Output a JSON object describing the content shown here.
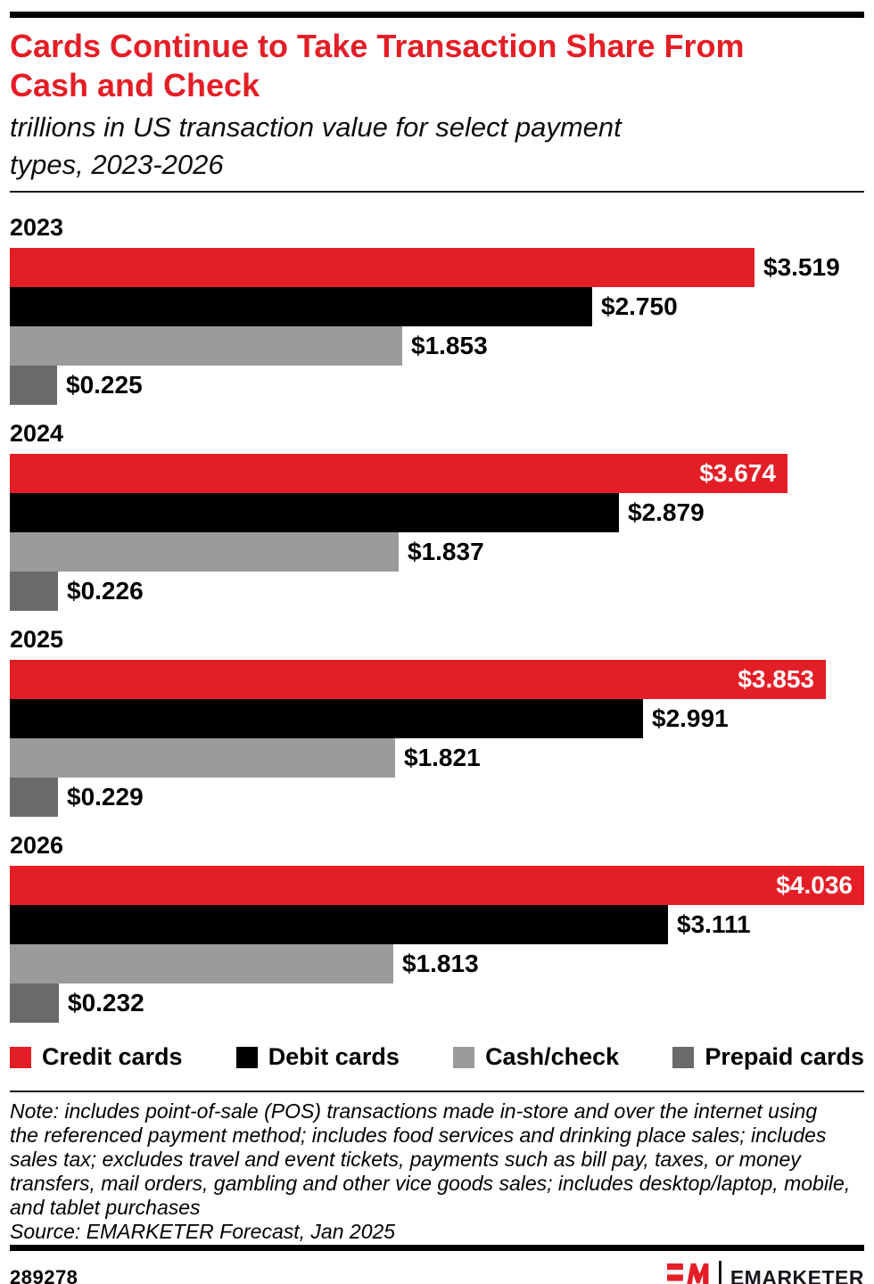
{
  "header": {
    "title_lines": [
      "Cards Continue to Take Transaction Share From",
      "Cash and Check"
    ],
    "subtitle_lines": [
      "trillions in US transaction value for select payment",
      "types, 2023-2026"
    ]
  },
  "chart_data": {
    "type": "bar",
    "orientation": "horizontal",
    "title": "Cards Continue to Take Transaction Share From Cash and Check",
    "subtitle": "trillions in US transaction value for select payment types, 2023-2026",
    "unit": "trillions of US dollars",
    "groups": [
      "2023",
      "2024",
      "2025",
      "2026"
    ],
    "series": [
      {
        "name": "Credit cards",
        "color": "#e41e26",
        "values": [
          3.519,
          3.674,
          3.853,
          4.036
        ],
        "labels": [
          "$3.519",
          "$3.674",
          "$3.853",
          "$4.036"
        ]
      },
      {
        "name": "Debit cards",
        "color": "#000000",
        "values": [
          2.75,
          2.879,
          2.991,
          3.111
        ],
        "labels": [
          "$2.750",
          "$2.879",
          "$2.991",
          "$3.111"
        ]
      },
      {
        "name": "Cash/check",
        "color": "#9b9b9b",
        "values": [
          1.853,
          1.837,
          1.821,
          1.813
        ],
        "labels": [
          "$1.853",
          "$1.837",
          "$1.821",
          "$1.813"
        ]
      },
      {
        "name": "Prepaid cards",
        "color": "#6a6a6a",
        "values": [
          0.225,
          0.226,
          0.229,
          0.232
        ],
        "labels": [
          "$0.225",
          "$0.226",
          "$0.229",
          "$0.232"
        ]
      }
    ],
    "xlim": [
      0,
      4.036
    ],
    "grid": false,
    "value_labels": true,
    "legend_position": "bottom"
  },
  "note": {
    "lines": [
      "Note: includes point-of-sale (POS) transactions made in-store and over the internet using",
      "the referenced payment method; includes food services and drinking place sales; includes",
      "sales tax; excludes travel and event tickets, payments such as bill pay, taxes, or money",
      "transfers, mail orders, gambling and other vice goods sales; includes desktop/laptop, mobile,",
      "and tablet purchases"
    ],
    "source": "Source: EMARKETER Forecast, Jan 2025"
  },
  "footer": {
    "chart_id": "289278",
    "brand": "EMARKETER",
    "brand_color": "#e41e26"
  }
}
